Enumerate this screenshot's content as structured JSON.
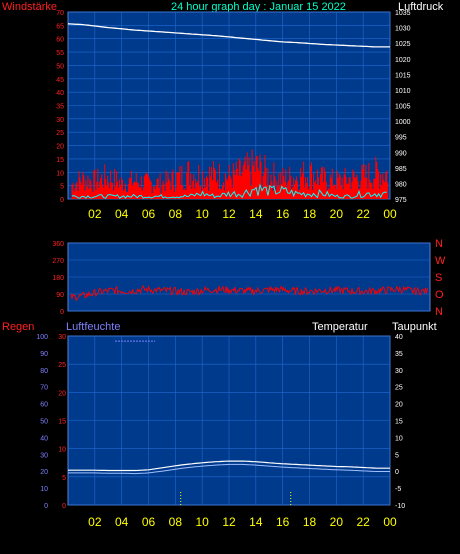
{
  "header": {
    "windstaerke": "Windstärke",
    "title": "24 hour graph day : Januar 15 2022",
    "luftdruck": "Luftdruck",
    "regen": "Regen",
    "luftfeuchte": "Luftfeuchte",
    "temperatur": "Temperatur",
    "taupunkt": "Taupunkt"
  },
  "colors": {
    "plot_bg": "#003a8c",
    "grid": "#1f6ad1",
    "wind_left": "#ff2020",
    "pressure_right": "#ffffff",
    "time_labels": "#ffff00",
    "title": "#00ffcc",
    "luftfeuchte": "#8080ff",
    "wind_series": "#ff0000",
    "gust_series": "#00ffff",
    "pressure_series": "#ffffff",
    "rain_series": "#ffff00"
  },
  "chart_data": [
    {
      "type": "area",
      "y_left": {
        "label": "Windstärke",
        "ylim": [
          0,
          70
        ],
        "ticks": [
          "0",
          "5",
          "10",
          "15",
          "20",
          "25",
          "30",
          "35",
          "40",
          "45",
          "50",
          "55",
          "60",
          "65",
          "70"
        ]
      },
      "y_right": {
        "label": "Luftdruck",
        "ylim": [
          975,
          1035
        ],
        "ticks": [
          "975",
          "980",
          "985",
          "990",
          "995",
          "1000",
          "1005",
          "1010",
          "1015",
          "1020",
          "1025",
          "1030",
          "1035"
        ]
      },
      "x_ticks": [
        "02",
        "04",
        "06",
        "08",
        "10",
        "12",
        "14",
        "16",
        "18",
        "20",
        "22",
        "00"
      ],
      "grid": true,
      "series": [
        {
          "values_hourly": [
            6,
            10,
            9,
            11,
            8,
            9,
            8,
            8,
            10,
            13,
            12,
            12,
            11,
            13,
            16,
            12,
            10,
            11,
            13,
            10,
            9,
            10,
            11,
            13
          ]
        },
        {
          "values_hourly": [
            1,
            1,
            1,
            1,
            1,
            1,
            1,
            1,
            1,
            1,
            2,
            1,
            2,
            2,
            4,
            3,
            3,
            2,
            2,
            2,
            1,
            1,
            2,
            2
          ]
        },
        {
          "values_hourly": [
            1031.2,
            1031.0,
            1030.5,
            1030.0,
            1029.6,
            1029.2,
            1028.9,
            1028.6,
            1028.3,
            1028.0,
            1027.7,
            1027.4,
            1027.0,
            1026.6,
            1026.2,
            1025.8,
            1025.4,
            1025.2,
            1024.9,
            1024.6,
            1024.4,
            1024.2,
            1024.0,
            1023.8
          ]
        }
      ]
    },
    {
      "type": "scatter",
      "y_left": {
        "ylim": [
          0,
          360
        ],
        "ticks": [
          "0",
          "90",
          "180",
          "270",
          "360"
        ]
      },
      "compass": [
        "N",
        "W",
        "S",
        "O",
        "N"
      ],
      "grid": true,
      "series": [
        {
          "values_hourly": [
            70,
            80,
            100,
            110,
            105,
            115,
            110,
            105,
            100,
            110,
            115,
            110,
            105,
            110,
            115,
            105,
            105,
            110,
            110,
            105,
            105,
            110,
            115,
            105
          ]
        }
      ]
    },
    {
      "type": "line",
      "y_left": {
        "label": "Regen",
        "ylim": [
          0,
          30
        ],
        "ticks": [
          "0",
          "5",
          "10",
          "15",
          "20",
          "25",
          "30"
        ]
      },
      "y_left2": {
        "label": "Luftfeuchte",
        "ylim": [
          0,
          100
        ],
        "ticks": [
          "0",
          "10",
          "20",
          "30",
          "40",
          "50",
          "60",
          "70",
          "80",
          "90",
          "100"
        ]
      },
      "y_right": {
        "label": "Taupunkt",
        "ylim": [
          -10,
          40
        ],
        "ticks": [
          "-10",
          "-5",
          "0",
          "5",
          "10",
          "15",
          "20",
          "25",
          "30",
          "35",
          "40"
        ]
      },
      "x_ticks": [
        "02",
        "04",
        "06",
        "08",
        "10",
        "12",
        "14",
        "16",
        "18",
        "20",
        "22",
        "00"
      ],
      "grid": true,
      "series": [
        {
          "values_hourly": [
            0.3,
            0.3,
            0.3,
            0.2,
            0.2,
            0.2,
            0.4,
            1.0,
            1.6,
            2.1,
            2.5,
            2.8,
            3.0,
            3.0,
            2.8,
            2.5,
            2.2,
            2.0,
            1.8,
            1.6,
            1.4,
            1.3,
            1.1,
            0.9
          ]
        },
        {
          "values_hourly": [
            -0.5,
            -0.5,
            -0.5,
            -0.6,
            -0.6,
            -0.7,
            -0.5,
            0.0,
            0.6,
            1.1,
            1.5,
            1.8,
            2.0,
            2.0,
            1.8,
            1.5,
            1.2,
            1.0,
            0.8,
            0.6,
            0.4,
            0.3,
            0.1,
            -0.1
          ]
        },
        {
          "values_hourly": [
            null,
            null,
            null,
            97,
            97,
            97,
            97,
            null,
            null,
            null,
            null,
            null,
            null,
            null,
            null,
            null,
            null,
            null,
            null,
            null,
            null,
            null,
            null,
            null
          ]
        },
        {
          "rain_marks_hours": [
            8.4,
            16.6
          ],
          "values": [
            0.2,
            0.2
          ]
        }
      ]
    }
  ]
}
